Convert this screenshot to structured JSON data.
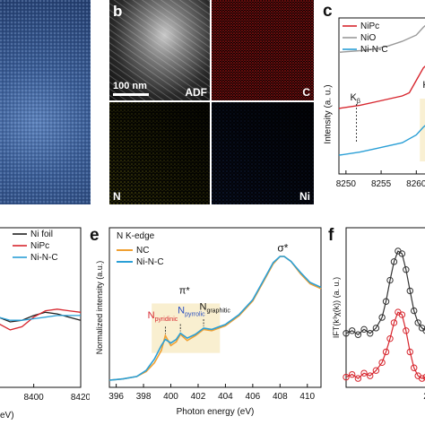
{
  "panels": {
    "b": {
      "letter": "b",
      "scale_bar": "100 nm",
      "maps": {
        "adf": "ADF",
        "c": "C",
        "n": "N",
        "ni": "Ni"
      }
    },
    "c": {
      "letter": "c",
      "ylabel": "Intensity (a. u.)",
      "legend": [
        "NiPc",
        "NiO",
        "Ni-N-C"
      ],
      "annotations": {
        "kb": "K",
        "kb_sub": "β",
        "k2": "K"
      },
      "xticks": [
        "8250",
        "8255",
        "8260"
      ]
    },
    "d": {
      "legend": [
        "Ni foil",
        "NiPc",
        "Ni-N-C"
      ],
      "xticks": [
        "8400",
        "8420"
      ],
      "xunit": "eV)"
    },
    "e": {
      "letter": "e",
      "title": "N K-edge",
      "legend": [
        "NC",
        "Ni-N-C"
      ],
      "ylabel": "Normalized intensity (a.u.)",
      "xlabel": "Photon energy (eV)",
      "xticks": [
        "396",
        "398",
        "400",
        "402",
        "404",
        "406",
        "408",
        "410"
      ],
      "annotations": {
        "sigma": "σ*",
        "pi": "π*",
        "n_pyridinic": "N",
        "n_pyridinic_sub": "pyridinic",
        "n_pyrrolic": "N",
        "n_pyrrolic_sub": "pyrrolic",
        "n_graphitic": "N",
        "n_graphitic_sub": "graphitic"
      }
    },
    "f": {
      "letter": "f",
      "ylabel": "IFT(k³χ(k)) (a. u.)",
      "xtick": "2"
    }
  },
  "chart_data": [
    {
      "type": "line",
      "panel": "c",
      "ylabel": "Intensity (a. u.)",
      "xlim": [
        8249,
        8262
      ],
      "x_ticks": [
        8250,
        8255,
        8260
      ],
      "series": [
        {
          "name": "NiPc",
          "color": "#d7262e",
          "x": [
            8249,
            8252,
            8254,
            8256,
            8258,
            8259,
            8260,
            8261,
            8262
          ],
          "y": [
            0.42,
            0.44,
            0.46,
            0.48,
            0.5,
            0.52,
            0.6,
            0.68,
            0.72
          ]
        },
        {
          "name": "NiO",
          "color": "#9a9a9a",
          "x": [
            8249,
            8252,
            8254,
            8256,
            8258,
            8260,
            8261,
            8262
          ],
          "y": [
            0.78,
            0.79,
            0.8,
            0.82,
            0.85,
            0.89,
            0.94,
            0.98
          ]
        },
        {
          "name": "Ni-N-C",
          "color": "#2a9fd6",
          "x": [
            8249,
            8252,
            8254,
            8256,
            8258,
            8260,
            8261,
            8262
          ],
          "y": [
            0.12,
            0.14,
            0.16,
            0.18,
            0.2,
            0.25,
            0.3,
            0.34
          ]
        }
      ]
    },
    {
      "type": "line",
      "panel": "d",
      "xlim": [
        8378,
        8420
      ],
      "x_ticks": [
        8400,
        8420
      ],
      "series": [
        {
          "name": "Ni foil",
          "color": "#222222",
          "x": [
            8378,
            8382,
            8385,
            8390,
            8395,
            8400,
            8405,
            8410,
            8415,
            8420
          ],
          "y": [
            0.62,
            0.52,
            0.44,
            0.41,
            0.42,
            0.45,
            0.47,
            0.46,
            0.44,
            0.42
          ]
        },
        {
          "name": "NiPc",
          "color": "#d7262e",
          "x": [
            8378,
            8382,
            8385,
            8390,
            8395,
            8400,
            8405,
            8410,
            8415,
            8420
          ],
          "y": [
            0.55,
            0.5,
            0.4,
            0.36,
            0.38,
            0.44,
            0.48,
            0.49,
            0.48,
            0.47
          ]
        },
        {
          "name": "Ni-N-C",
          "color": "#2a9fd6",
          "x": [
            8378,
            8382,
            8385,
            8390,
            8395,
            8400,
            8405,
            8410,
            8415,
            8420
          ],
          "y": [
            0.5,
            0.47,
            0.44,
            0.42,
            0.42,
            0.43,
            0.44,
            0.45,
            0.45,
            0.45
          ]
        }
      ]
    },
    {
      "type": "line",
      "panel": "e",
      "title": "N K-edge",
      "xlabel": "Photon energy (eV)",
      "ylabel": "Normalized intensity (a.u.)",
      "xlim": [
        395.5,
        411
      ],
      "x_ticks": [
        396,
        398,
        400,
        402,
        404,
        406,
        408,
        410
      ],
      "series": [
        {
          "name": "NC",
          "color": "#f0a032",
          "x": [
            395.5,
            396.5,
            397.5,
            398.2,
            398.8,
            399.3,
            399.6,
            400.0,
            400.4,
            400.7,
            401.2,
            401.8,
            402.4,
            403.0,
            404.0,
            405.0,
            406.0,
            406.8,
            407.5,
            408.0,
            408.3,
            408.8,
            409.5,
            410.2,
            411.0
          ],
          "y": [
            0.0,
            0.01,
            0.03,
            0.07,
            0.14,
            0.24,
            0.36,
            0.28,
            0.31,
            0.37,
            0.32,
            0.36,
            0.41,
            0.4,
            0.44,
            0.52,
            0.64,
            0.8,
            0.94,
            1.0,
            1.0,
            0.96,
            0.86,
            0.78,
            0.74
          ]
        },
        {
          "name": "Ni-N-C",
          "color": "#2a9fd6",
          "x": [
            395.5,
            396.5,
            397.5,
            398.2,
            398.8,
            399.3,
            399.6,
            400.0,
            400.4,
            400.7,
            401.2,
            401.8,
            402.4,
            403.0,
            404.0,
            405.0,
            406.0,
            406.8,
            407.5,
            408.0,
            408.3,
            408.8,
            409.5,
            410.2,
            411.0
          ],
          "y": [
            0.0,
            0.01,
            0.03,
            0.08,
            0.17,
            0.28,
            0.33,
            0.3,
            0.33,
            0.38,
            0.34,
            0.37,
            0.42,
            0.41,
            0.45,
            0.53,
            0.65,
            0.81,
            0.95,
            1.0,
            1.0,
            0.96,
            0.87,
            0.79,
            0.75
          ]
        }
      ]
    },
    {
      "type": "scatter",
      "panel": "f",
      "xlim": [
        0,
        2.2
      ],
      "x_ticks": [
        2
      ],
      "series": [
        {
          "color": "#333333",
          "x": [
            0.0,
            0.15,
            0.3,
            0.45,
            0.6,
            0.75,
            0.9,
            1.0,
            1.1,
            1.2,
            1.3,
            1.4,
            1.5,
            1.6,
            1.7,
            1.8,
            1.9,
            2.0,
            2.1,
            2.2
          ],
          "y": [
            0.38,
            0.4,
            0.37,
            0.41,
            0.38,
            0.42,
            0.5,
            0.62,
            0.78,
            0.92,
            1.0,
            0.98,
            0.86,
            0.7,
            0.55,
            0.46,
            0.42,
            0.4,
            0.41,
            0.4
          ]
        },
        {
          "color": "#d7262e",
          "x": [
            0.0,
            0.15,
            0.3,
            0.45,
            0.6,
            0.75,
            0.9,
            1.0,
            1.1,
            1.2,
            1.3,
            1.4,
            1.5,
            1.6,
            1.7,
            1.8,
            1.9,
            2.0,
            2.1,
            2.2
          ],
          "y": [
            0.05,
            0.07,
            0.04,
            0.08,
            0.06,
            0.1,
            0.16,
            0.24,
            0.34,
            0.46,
            0.54,
            0.52,
            0.4,
            0.24,
            0.12,
            0.06,
            0.04,
            0.05,
            0.04,
            0.05
          ]
        }
      ]
    }
  ]
}
